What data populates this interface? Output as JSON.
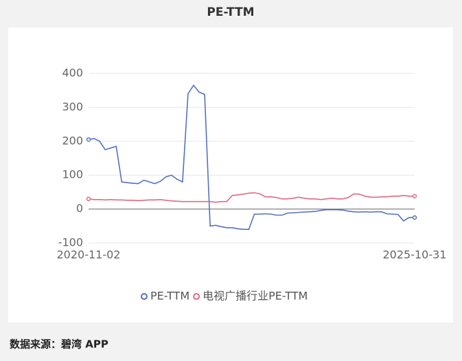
{
  "chart_data": {
    "type": "line",
    "title": "PE-TTM",
    "categories": [
      "2020-11-02",
      null,
      null,
      null,
      null,
      null,
      null,
      null,
      null,
      null,
      null,
      null,
      null,
      null,
      null,
      null,
      null,
      null,
      null,
      null,
      null,
      null,
      null,
      null,
      null,
      null,
      null,
      null,
      null,
      null,
      null,
      null,
      null,
      null,
      null,
      null,
      null,
      null,
      null,
      null,
      null,
      null,
      null,
      null,
      null,
      null,
      null,
      null,
      null,
      null,
      null,
      null,
      null,
      null,
      null,
      null,
      null,
      null,
      null,
      "2025-10-31"
    ],
    "series": [
      {
        "name": "PE-TTM",
        "color": "#5470c6",
        "values": [
          205,
          208,
          200,
          175,
          180,
          185,
          80,
          78,
          76,
          75,
          85,
          80,
          75,
          82,
          95,
          100,
          88,
          80,
          340,
          365,
          345,
          338,
          -50,
          -48,
          -52,
          -55,
          -55,
          -58,
          -60,
          -60,
          -15,
          -15,
          -14,
          -15,
          -18,
          -18,
          -12,
          -11,
          -10,
          -9,
          -8,
          -7,
          -4,
          -2,
          -2,
          -2,
          -3,
          -6,
          -8,
          -9,
          -8,
          -9,
          -8,
          -8,
          -14,
          -15,
          -16,
          -35,
          -25,
          -25
        ]
      },
      {
        "name": "电视广播行业PE-TTM",
        "color": "#e06b7d",
        "values": [
          30,
          28,
          28,
          27,
          28,
          27,
          27,
          26,
          26,
          25,
          26,
          27,
          27,
          28,
          26,
          24,
          23,
          22,
          22,
          22,
          22,
          22,
          22,
          20,
          22,
          22,
          40,
          42,
          44,
          47,
          48,
          45,
          36,
          36,
          34,
          30,
          30,
          32,
          35,
          32,
          30,
          30,
          28,
          30,
          32,
          30,
          30,
          34,
          45,
          44,
          38,
          35,
          35,
          36,
          36,
          38,
          38,
          40,
          38,
          38
        ]
      }
    ],
    "ylim": [
      -100,
      400
    ],
    "yticks": [
      -100,
      0,
      100,
      200,
      300,
      400
    ],
    "grid": true,
    "legend": "bottom",
    "source": "数据来源：碧湾 APP"
  }
}
